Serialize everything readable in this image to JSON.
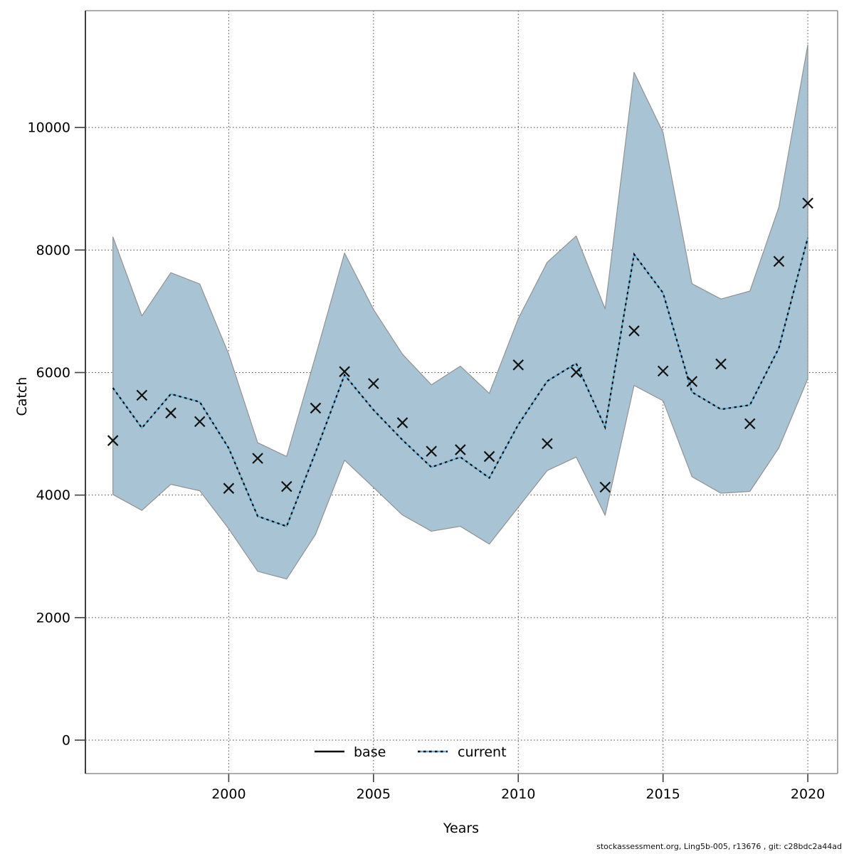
{
  "footer": "stockassessment.org, Ling5b-005, r13676 , git: c28bdc2a44ad",
  "chart_data": {
    "type": "line",
    "title": "",
    "xlabel": "Years",
    "ylabel": "Catch",
    "legend": [
      {
        "label": "base",
        "style": "solid-black-line"
      },
      {
        "label": "current",
        "style": "dotted-blue-line"
      }
    ],
    "x": [
      1996,
      1997,
      1998,
      1999,
      2000,
      2001,
      2002,
      2003,
      2004,
      2005,
      2006,
      2007,
      2008,
      2009,
      2010,
      2011,
      2012,
      2013,
      2014,
      2015,
      2016,
      2017,
      2018,
      2019,
      2020
    ],
    "series": [
      {
        "name": "observed_catch",
        "marker": "x",
        "values": [
          4890,
          5630,
          5340,
          5200,
          4110,
          4600,
          4140,
          5420,
          6015,
          5820,
          5180,
          4715,
          4740,
          4630,
          6125,
          4840,
          6005,
          4130,
          6680,
          6025,
          5855,
          6140,
          5165,
          7815,
          8765
        ]
      },
      {
        "name": "current",
        "line": "dotted",
        "values": [
          5750,
          5095,
          5650,
          5520,
          4765,
          3655,
          3490,
          4700,
          5960,
          5390,
          4900,
          4455,
          4620,
          4280,
          5150,
          5860,
          6150,
          5105,
          7930,
          7300,
          5680,
          5400,
          5470,
          6400,
          8200
        ]
      }
    ],
    "band": {
      "name": "confidence-interval",
      "lower": [
        4010,
        3750,
        4175,
        4070,
        3450,
        2755,
        2630,
        3360,
        4570,
        4125,
        3675,
        3410,
        3490,
        3200,
        3800,
        4400,
        4620,
        3670,
        5790,
        5540,
        4300,
        4030,
        4060,
        4770,
        5900
      ],
      "upper": [
        8215,
        6925,
        7630,
        7445,
        6300,
        4855,
        4630,
        6270,
        7950,
        7030,
        6300,
        5800,
        6105,
        5660,
        6880,
        7800,
        8230,
        7040,
        10900,
        9920,
        7450,
        7200,
        7330,
        8700,
        11350
      ]
    },
    "xticks": [
      2000,
      2005,
      2010,
      2015,
      2020
    ],
    "xtick_labels": [
      "2000",
      "2005",
      "2010",
      "2015",
      "2020"
    ],
    "yticks": [
      0,
      2000,
      4000,
      6000,
      8000,
      10000
    ],
    "ytick_labels": [
      "0",
      "2000",
      "4000",
      "6000",
      "8000",
      "10000"
    ],
    "xlim": [
      1995.05,
      2021.03
    ],
    "ylim": [
      -546,
      11907
    ],
    "grid": true,
    "legend_position": "bottom-center-inside",
    "colors": {
      "band_fill": "#a8c4d4",
      "band_edge": "#929292",
      "current_blue": "#62aed6",
      "current_black": "#0d0d0d",
      "marker": "#111111",
      "grid": "#4a4a4a",
      "frame": "#919191",
      "axis_line": "#3f3f3f",
      "background": "#ffffff"
    }
  }
}
